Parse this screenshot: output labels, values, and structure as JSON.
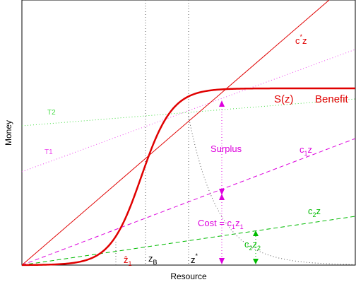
{
  "chart_data": {
    "type": "line",
    "xlabel": "Resource",
    "ylabel": "Money",
    "colors": {
      "benefit": "#e00000",
      "cost1": "#dd00dd",
      "cost2": "#00bb00",
      "c_star": "#e00000",
      "surplus": "#dd00dd",
      "tangent2": "#44dd44",
      "tangent1": "#ee44ee",
      "marker_lines": "#555555"
    },
    "labels": {
      "benefit_fn": "S(z)",
      "benefit": "Benefit",
      "c_star_z": "c*z",
      "c_star_base": "c",
      "c_star_sup": "*",
      "c_star_tail": "z",
      "c1z_base": "c",
      "c1z_sub": "1",
      "c1z_tail": "z",
      "c2z_base": "c",
      "c2z_sub": "2",
      "c2z_tail": "z",
      "surplus": "Surplus",
      "cost_prefix": "Cost = c",
      "cost_sub1": "1",
      "cost_mid": "z",
      "cost_sub2": "1",
      "c2z2_c": "c",
      "c2z2_sub1": "2",
      "c2z2_z": "z",
      "c2z2_sub2": "2",
      "t2": "T2",
      "t1": "T1",
      "zhat_base": "ẑ",
      "zhat_sub": "1",
      "zb_base": "z",
      "zb_sub": "B",
      "zstar_base": "z",
      "zstar_sup": "*"
    }
  }
}
